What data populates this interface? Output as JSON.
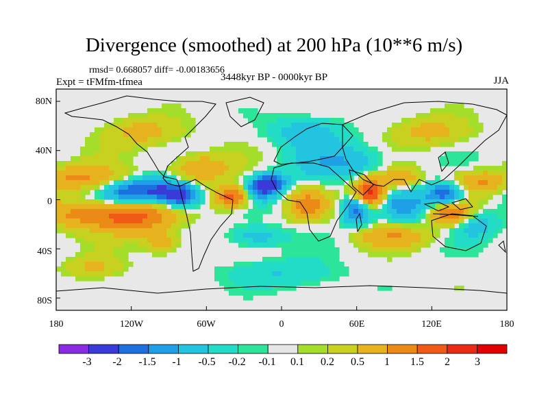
{
  "title": "Divergence (smoothed) at 200 hPa (10**6 m/s)",
  "stats": "rmsd= 0.668057 diff= -0.00183656",
  "experiment": "Expt = tFMfm-tfmea",
  "period": "3448kyr BP - 0000kyr BP",
  "season": "JJA",
  "map": {
    "lat_ticks": [
      "80N",
      "40N",
      "0",
      "40S",
      "80S"
    ],
    "lon_ticks": [
      "180",
      "120W",
      "60W",
      "0",
      "60E",
      "120E",
      "180"
    ],
    "lon_range": [
      -180,
      180
    ],
    "lat_range": [
      -90,
      90
    ],
    "background_color": "#e8e8e8",
    "anomalies": [
      {
        "lon": -160,
        "lat": 18,
        "sx": 24,
        "sy": 7,
        "v": 1.1
      },
      {
        "lon": -155,
        "lat": -12,
        "sx": 25,
        "sy": 8,
        "v": 1.2
      },
      {
        "lon": -115,
        "lat": -15,
        "sx": 20,
        "sy": 9,
        "v": 1.4
      },
      {
        "lon": -100,
        "lat": 8,
        "sx": 15,
        "sy": 7,
        "v": -2.0
      },
      {
        "lon": -80,
        "lat": 3,
        "sx": 10,
        "sy": 6,
        "v": -2.3
      },
      {
        "lon": -125,
        "lat": 6,
        "sx": 12,
        "sy": 6,
        "v": -1.3
      },
      {
        "lon": -65,
        "lat": 25,
        "sx": 16,
        "sy": 8,
        "v": 1.0
      },
      {
        "lon": -40,
        "lat": 2,
        "sx": 10,
        "sy": 6,
        "v": 1.9
      },
      {
        "lon": -15,
        "lat": 10,
        "sx": 8,
        "sy": 6,
        "v": -2.2
      },
      {
        "lon": -5,
        "lat": 14,
        "sx": 8,
        "sy": 5,
        "v": -1.4
      },
      {
        "lon": 20,
        "lat": -5,
        "sx": 10,
        "sy": 8,
        "v": 1.1
      },
      {
        "lon": 45,
        "lat": 30,
        "sx": 25,
        "sy": 10,
        "v": -1.0
      },
      {
        "lon": 60,
        "lat": -8,
        "sx": 8,
        "sy": 8,
        "v": -2.0
      },
      {
        "lon": 70,
        "lat": 5,
        "sx": 9,
        "sy": 9,
        "v": 2.6
      },
      {
        "lon": 100,
        "lat": -5,
        "sx": 14,
        "sy": 8,
        "v": -1.2
      },
      {
        "lon": 95,
        "lat": 18,
        "sx": 10,
        "sy": 6,
        "v": 1.0
      },
      {
        "lon": 130,
        "lat": 5,
        "sx": 10,
        "sy": 6,
        "v": -2.0
      },
      {
        "lon": 135,
        "lat": -12,
        "sx": 12,
        "sy": 6,
        "v": 1.5
      },
      {
        "lon": 160,
        "lat": 15,
        "sx": 15,
        "sy": 6,
        "v": 1.0
      },
      {
        "lon": 155,
        "lat": -20,
        "sx": 12,
        "sy": 8,
        "v": -0.8
      },
      {
        "lon": -95,
        "lat": -35,
        "sx": 10,
        "sy": 6,
        "v": 0.8
      },
      {
        "lon": -20,
        "lat": -30,
        "sx": 15,
        "sy": 6,
        "v": -0.8
      },
      {
        "lon": 90,
        "lat": -30,
        "sx": 20,
        "sy": 6,
        "v": 0.9
      },
      {
        "lon": -110,
        "lat": 55,
        "sx": 20,
        "sy": 8,
        "v": 0.7
      },
      {
        "lon": 20,
        "lat": 55,
        "sx": 20,
        "sy": 8,
        "v": -0.8
      },
      {
        "lon": 120,
        "lat": 55,
        "sx": 20,
        "sy": 8,
        "v": 0.7
      },
      {
        "lon": -150,
        "lat": -55,
        "sx": 15,
        "sy": 6,
        "v": 0.6
      },
      {
        "lon": 0,
        "lat": -60,
        "sx": 30,
        "sy": 8,
        "v": -0.5
      }
    ]
  },
  "colorbar": {
    "labels": [
      "-3",
      "-2",
      "-1.5",
      "-1",
      "-0.5",
      "-0.2",
      "-0.1",
      "0.1",
      "0.2",
      "0.5",
      "1",
      "1.5",
      "2",
      "3"
    ],
    "colors": [
      "#8a2be2",
      "#3a3ad8",
      "#1e6fe0",
      "#1fa0e6",
      "#22c4e0",
      "#22dcc8",
      "#2ce49a",
      "#e6e6e6",
      "#a4de2a",
      "#c8d020",
      "#e6b21e",
      "#ec8a18",
      "#f05a16",
      "#e82a14",
      "#e00000"
    ]
  }
}
